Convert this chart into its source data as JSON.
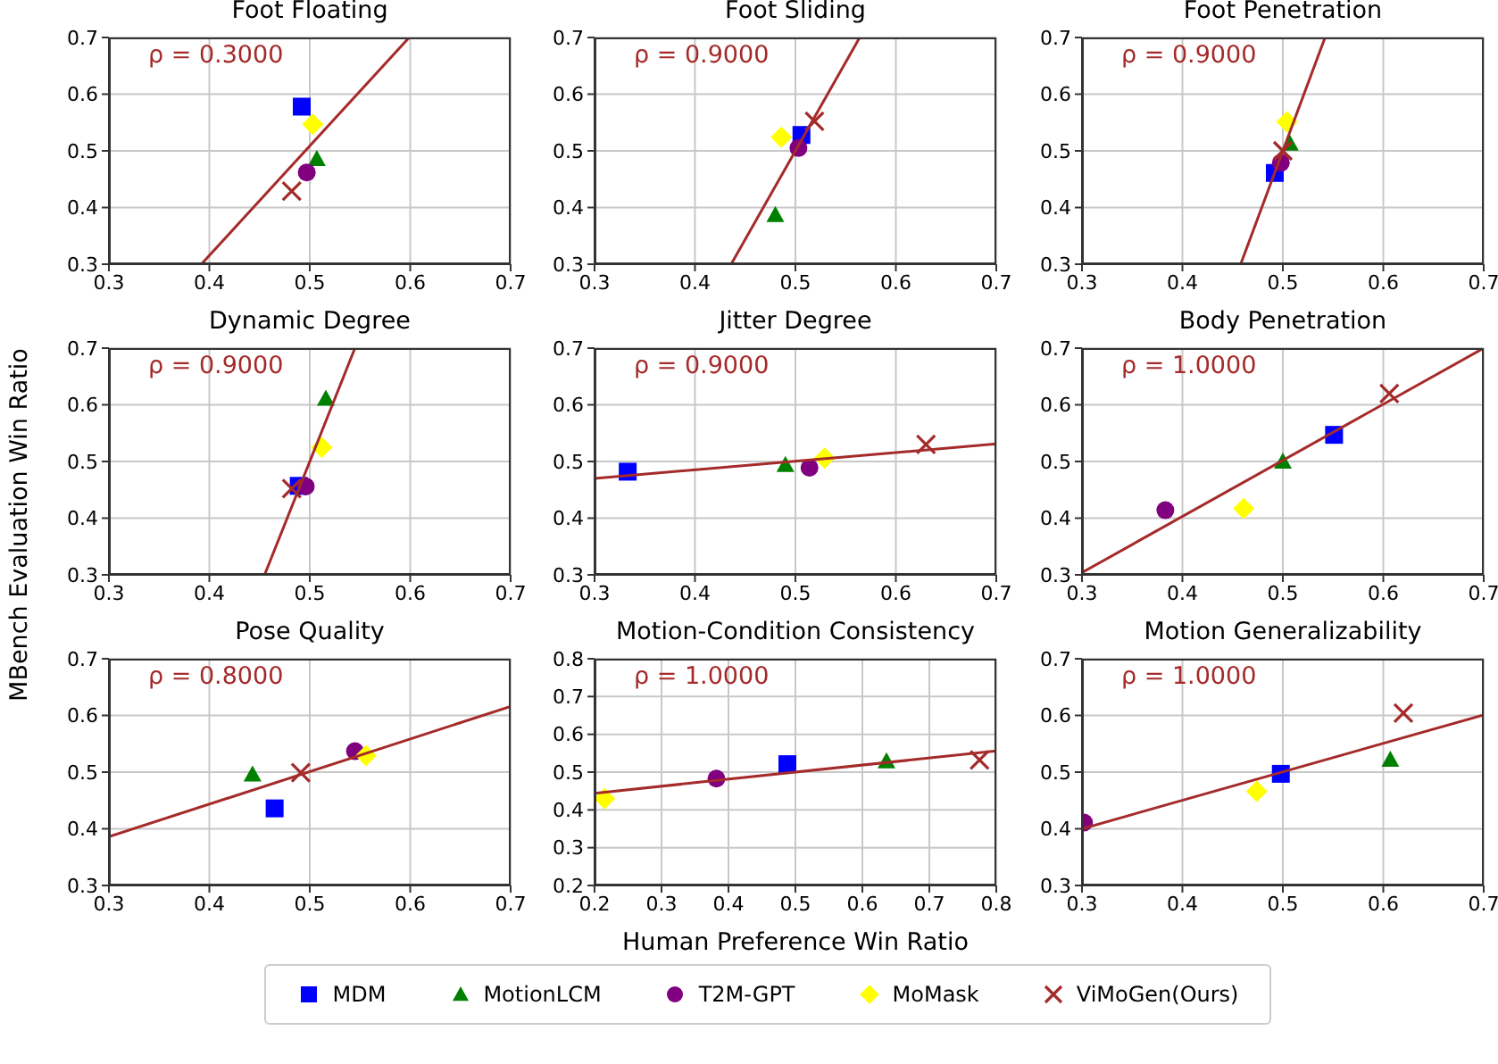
{
  "chart_data": [
    {
      "type": "scatter",
      "title": "Foot Floating",
      "annotations": [
        "ρ = 0.3000"
      ],
      "xlim": [
        0.3,
        0.7
      ],
      "ylim": [
        0.3,
        0.7
      ],
      "xticks": [
        0.3,
        0.4,
        0.5,
        0.6,
        0.7
      ],
      "yticks": [
        0.3,
        0.4,
        0.5,
        0.6,
        0.7
      ],
      "grid": true,
      "series": [
        {
          "color": "#0000ff",
          "marker": "square",
          "x": [
            0.492
          ],
          "values": [
            0.578
          ]
        },
        {
          "color": "#008000",
          "marker": "triangle",
          "x": [
            0.507
          ],
          "values": [
            0.486
          ]
        },
        {
          "color": "#800080",
          "marker": "circle",
          "x": [
            0.497
          ],
          "values": [
            0.462
          ]
        },
        {
          "color": "#ffff00",
          "marker": "diamond",
          "x": [
            0.503
          ],
          "values": [
            0.547
          ]
        },
        {
          "color": "#a52a2a",
          "marker": "cross",
          "x": [
            0.482
          ],
          "values": [
            0.429
          ]
        },
        {
          "type": "line",
          "color": "#a52a2a",
          "marker": "none",
          "line_style": "solid",
          "x": [
            0.392,
            0.599
          ],
          "values": [
            0.3,
            0.7
          ]
        }
      ]
    },
    {
      "type": "scatter",
      "title": "Foot Sliding",
      "annotations": [
        "ρ = 0.9000"
      ],
      "xlim": [
        0.3,
        0.7
      ],
      "ylim": [
        0.3,
        0.7
      ],
      "xticks": [
        0.3,
        0.4,
        0.5,
        0.6,
        0.7
      ],
      "yticks": [
        0.3,
        0.4,
        0.5,
        0.6,
        0.7
      ],
      "grid": true,
      "series": [
        {
          "color": "#0000ff",
          "marker": "square",
          "x": [
            0.506
          ],
          "values": [
            0.528
          ]
        },
        {
          "color": "#008000",
          "marker": "triangle",
          "x": [
            0.48
          ],
          "values": [
            0.387
          ]
        },
        {
          "color": "#800080",
          "marker": "circle",
          "x": [
            0.503
          ],
          "values": [
            0.505
          ]
        },
        {
          "color": "#ffff00",
          "marker": "diamond",
          "x": [
            0.486
          ],
          "values": [
            0.524
          ]
        },
        {
          "color": "#a52a2a",
          "marker": "cross",
          "x": [
            0.519
          ],
          "values": [
            0.552
          ]
        },
        {
          "type": "line",
          "color": "#a52a2a",
          "marker": "none",
          "line_style": "solid",
          "x": [
            0.436,
            0.564
          ],
          "values": [
            0.3,
            0.7
          ]
        }
      ]
    },
    {
      "type": "scatter",
      "title": "Foot Penetration",
      "annotations": [
        "ρ = 0.9000"
      ],
      "xlim": [
        0.3,
        0.7
      ],
      "ylim": [
        0.3,
        0.7
      ],
      "xticks": [
        0.3,
        0.4,
        0.5,
        0.6,
        0.7
      ],
      "yticks": [
        0.3,
        0.4,
        0.5,
        0.6,
        0.7
      ],
      "grid": true,
      "series": [
        {
          "color": "#0000ff",
          "marker": "square",
          "x": [
            0.492
          ],
          "values": [
            0.461
          ]
        },
        {
          "color": "#008000",
          "marker": "triangle",
          "x": [
            0.507
          ],
          "values": [
            0.513
          ]
        },
        {
          "color": "#800080",
          "marker": "circle",
          "x": [
            0.498
          ],
          "values": [
            0.479
          ]
        },
        {
          "color": "#ffff00",
          "marker": "diamond",
          "x": [
            0.504
          ],
          "values": [
            0.551
          ]
        },
        {
          "color": "#a52a2a",
          "marker": "cross",
          "x": [
            0.5
          ],
          "values": [
            0.5
          ]
        },
        {
          "type": "line",
          "color": "#a52a2a",
          "marker": "none",
          "line_style": "solid",
          "x": [
            0.458,
            0.542
          ],
          "values": [
            0.3,
            0.7
          ]
        }
      ]
    },
    {
      "type": "scatter",
      "title": "Dynamic Degree",
      "ylabel": "MBench Evaluation Win Ratio",
      "annotations": [
        "ρ = 0.9000"
      ],
      "xlim": [
        0.3,
        0.7
      ],
      "ylim": [
        0.3,
        0.7
      ],
      "xticks": [
        0.3,
        0.4,
        0.5,
        0.6,
        0.7
      ],
      "yticks": [
        0.3,
        0.4,
        0.5,
        0.6,
        0.7
      ],
      "grid": true,
      "series": [
        {
          "color": "#0000ff",
          "marker": "square",
          "x": [
            0.489
          ],
          "values": [
            0.457
          ]
        },
        {
          "color": "#008000",
          "marker": "triangle",
          "x": [
            0.516
          ],
          "values": [
            0.611
          ]
        },
        {
          "color": "#800080",
          "marker": "circle",
          "x": [
            0.496
          ],
          "values": [
            0.456
          ]
        },
        {
          "color": "#ffff00",
          "marker": "diamond",
          "x": [
            0.512
          ],
          "values": [
            0.525
          ]
        },
        {
          "color": "#a52a2a",
          "marker": "cross",
          "x": [
            0.482
          ],
          "values": [
            0.452
          ]
        },
        {
          "type": "line",
          "color": "#a52a2a",
          "marker": "none",
          "line_style": "solid",
          "x": [
            0.455,
            0.545
          ],
          "values": [
            0.3,
            0.7
          ]
        }
      ]
    },
    {
      "type": "scatter",
      "title": "Jitter Degree",
      "annotations": [
        "ρ = 0.9000"
      ],
      "xlim": [
        0.3,
        0.7
      ],
      "ylim": [
        0.3,
        0.7
      ],
      "xticks": [
        0.3,
        0.4,
        0.5,
        0.6,
        0.7
      ],
      "yticks": [
        0.3,
        0.4,
        0.5,
        0.6,
        0.7
      ],
      "grid": true,
      "series": [
        {
          "color": "#0000ff",
          "marker": "square",
          "x": [
            0.333
          ],
          "values": [
            0.482
          ]
        },
        {
          "color": "#008000",
          "marker": "triangle",
          "x": [
            0.49
          ],
          "values": [
            0.494
          ]
        },
        {
          "color": "#800080",
          "marker": "circle",
          "x": [
            0.514
          ],
          "values": [
            0.489
          ]
        },
        {
          "color": "#ffff00",
          "marker": "diamond",
          "x": [
            0.529
          ],
          "values": [
            0.506
          ]
        },
        {
          "color": "#a52a2a",
          "marker": "cross",
          "x": [
            0.63
          ],
          "values": [
            0.53
          ]
        },
        {
          "type": "line",
          "color": "#a52a2a",
          "marker": "none",
          "line_style": "solid",
          "x": [
            0.3,
            0.7
          ],
          "values": [
            0.47,
            0.531
          ]
        }
      ]
    },
    {
      "type": "scatter",
      "title": "Body Penetration",
      "annotations": [
        "ρ = 1.0000"
      ],
      "xlim": [
        0.3,
        0.7
      ],
      "ylim": [
        0.3,
        0.7
      ],
      "xticks": [
        0.3,
        0.4,
        0.5,
        0.6,
        0.7
      ],
      "yticks": [
        0.3,
        0.4,
        0.5,
        0.6,
        0.7
      ],
      "grid": true,
      "series": [
        {
          "color": "#0000ff",
          "marker": "square",
          "x": [
            0.551
          ],
          "values": [
            0.547
          ]
        },
        {
          "color": "#008000",
          "marker": "triangle",
          "x": [
            0.5
          ],
          "values": [
            0.5
          ]
        },
        {
          "color": "#800080",
          "marker": "circle",
          "x": [
            0.383
          ],
          "values": [
            0.414
          ]
        },
        {
          "color": "#ffff00",
          "marker": "diamond",
          "x": [
            0.461
          ],
          "values": [
            0.417
          ]
        },
        {
          "color": "#a52a2a",
          "marker": "cross",
          "x": [
            0.606
          ],
          "values": [
            0.62
          ]
        },
        {
          "type": "line",
          "color": "#a52a2a",
          "marker": "none",
          "line_style": "solid",
          "x": [
            0.3,
            0.7
          ],
          "values": [
            0.304,
            0.7
          ]
        }
      ]
    },
    {
      "type": "scatter",
      "title": "Pose Quality",
      "annotations": [
        "ρ = 0.8000"
      ],
      "xlim": [
        0.3,
        0.7
      ],
      "ylim": [
        0.3,
        0.7
      ],
      "xticks": [
        0.3,
        0.4,
        0.5,
        0.6,
        0.7
      ],
      "yticks": [
        0.3,
        0.4,
        0.5,
        0.6,
        0.7
      ],
      "grid": true,
      "series": [
        {
          "color": "#0000ff",
          "marker": "square",
          "x": [
            0.465
          ],
          "values": [
            0.436
          ]
        },
        {
          "color": "#008000",
          "marker": "triangle",
          "x": [
            0.443
          ],
          "values": [
            0.496
          ]
        },
        {
          "color": "#800080",
          "marker": "circle",
          "x": [
            0.545
          ],
          "values": [
            0.537
          ]
        },
        {
          "color": "#ffff00",
          "marker": "diamond",
          "x": [
            0.556
          ],
          "values": [
            0.529
          ]
        },
        {
          "color": "#a52a2a",
          "marker": "cross",
          "x": [
            0.491
          ],
          "values": [
            0.499
          ]
        },
        {
          "type": "line",
          "color": "#a52a2a",
          "marker": "none",
          "line_style": "solid",
          "x": [
            0.3,
            0.7
          ],
          "values": [
            0.386,
            0.616
          ]
        }
      ]
    },
    {
      "type": "scatter",
      "title": "Motion-Condition Consistency",
      "xlabel": "Human Preference Win Ratio",
      "legend": "bottom",
      "annotations": [
        "ρ = 1.0000"
      ],
      "xlim": [
        0.2,
        0.8
      ],
      "ylim": [
        0.2,
        0.8
      ],
      "xticks": [
        0.2,
        0.3,
        0.4,
        0.5,
        0.6,
        0.7,
        0.8
      ],
      "yticks": [
        0.2,
        0.3,
        0.4,
        0.5,
        0.6,
        0.7,
        0.8
      ],
      "grid": true,
      "series": [
        {
          "name": "MDM",
          "color": "#0000ff",
          "marker": "square",
          "x": [
            0.488
          ],
          "values": [
            0.521
          ]
        },
        {
          "name": "MotionLCM",
          "color": "#008000",
          "marker": "triangle",
          "x": [
            0.636
          ],
          "values": [
            0.529
          ]
        },
        {
          "name": "T2M-GPT",
          "color": "#800080",
          "marker": "circle",
          "x": [
            0.382
          ],
          "values": [
            0.483
          ]
        },
        {
          "name": "MoMask",
          "color": "#ffff00",
          "marker": "diamond",
          "x": [
            0.215
          ],
          "values": [
            0.43
          ]
        },
        {
          "name": "ViMoGen(Ours)",
          "color": "#a52a2a",
          "marker": "cross",
          "x": [
            0.775
          ],
          "values": [
            0.532
          ]
        },
        {
          "type": "line",
          "color": "#a52a2a",
          "marker": "none",
          "line_style": "solid",
          "x": [
            0.2,
            0.8
          ],
          "values": [
            0.444,
            0.556
          ]
        }
      ]
    },
    {
      "type": "scatter",
      "title": "Motion Generalizability",
      "annotations": [
        "ρ = 1.0000"
      ],
      "xlim": [
        0.3,
        0.7
      ],
      "ylim": [
        0.3,
        0.7
      ],
      "xticks": [
        0.3,
        0.4,
        0.5,
        0.6,
        0.7
      ],
      "yticks": [
        0.3,
        0.4,
        0.5,
        0.6,
        0.7
      ],
      "grid": true,
      "series": [
        {
          "color": "#0000ff",
          "marker": "square",
          "x": [
            0.498
          ],
          "values": [
            0.497
          ]
        },
        {
          "color": "#008000",
          "marker": "triangle",
          "x": [
            0.607
          ],
          "values": [
            0.522
          ]
        },
        {
          "color": "#800080",
          "marker": "circle",
          "x": [
            0.302
          ],
          "values": [
            0.411
          ]
        },
        {
          "color": "#ffff00",
          "marker": "diamond",
          "x": [
            0.474
          ],
          "values": [
            0.466
          ]
        },
        {
          "color": "#a52a2a",
          "marker": "cross",
          "x": [
            0.62
          ],
          "values": [
            0.604
          ]
        },
        {
          "type": "line",
          "color": "#a52a2a",
          "marker": "none",
          "line_style": "solid",
          "x": [
            0.3,
            0.7
          ],
          "values": [
            0.4,
            0.601
          ]
        }
      ]
    }
  ]
}
